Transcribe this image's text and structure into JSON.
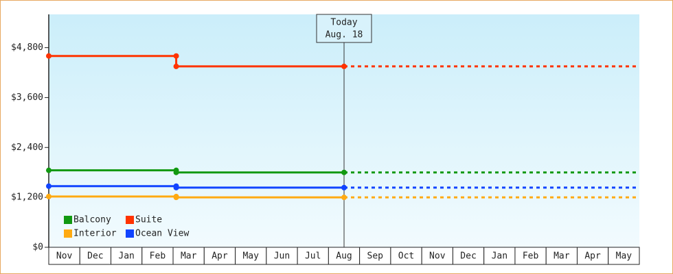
{
  "chart_data": {
    "type": "line",
    "categories": [
      "Nov",
      "Dec",
      "Jan",
      "Feb",
      "Mar",
      "Apr",
      "May",
      "Jun",
      "Jul",
      "Aug",
      "Sep",
      "Oct",
      "Nov",
      "Dec",
      "Jan",
      "Feb",
      "Mar",
      "Apr",
      "May"
    ],
    "xlim": [
      0,
      19
    ],
    "x": [
      0,
      4.1,
      4.1,
      9.5
    ],
    "ylim": [
      0,
      5600
    ],
    "yticks": [
      {
        "value": 0,
        "label": "$0"
      },
      {
        "value": 1200,
        "label": "$1,200"
      },
      {
        "value": 2400,
        "label": "$2,400"
      },
      {
        "value": 3600,
        "label": "$3,600"
      },
      {
        "value": 4800,
        "label": "$4,800"
      }
    ],
    "series": [
      {
        "name": "Balcony",
        "color": "#119911",
        "values": [
          1850,
          1850,
          1800,
          1800
        ]
      },
      {
        "name": "Suite",
        "color": "#ff3300",
        "values": [
          4600,
          4600,
          4350,
          4350
        ]
      },
      {
        "name": "Interior",
        "color": "#ffaa11",
        "values": [
          1220,
          1220,
          1200,
          1200
        ]
      },
      {
        "name": "Ocean View",
        "color": "#1144ff",
        "values": [
          1470,
          1470,
          1435,
          1435
        ]
      }
    ],
    "annotation": {
      "x": 9.5,
      "lines": [
        "Today",
        "Aug. 18"
      ]
    },
    "projection": true
  }
}
